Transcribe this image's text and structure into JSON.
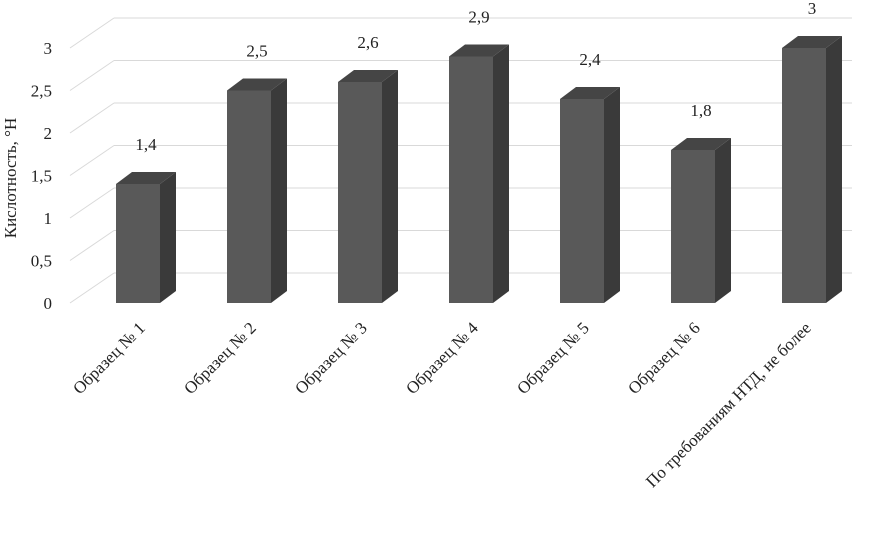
{
  "chart_data": {
    "type": "bar",
    "title": "",
    "xlabel": "",
    "ylabel": "Кислотность, °Н",
    "categories": [
      "Образец № 1",
      "Образец № 2",
      "Образец № 3",
      "Образец № 4",
      "Образец № 5",
      "Образец № 6",
      "По требованиям НТД, не более"
    ],
    "values": [
      1.4,
      2.5,
      2.6,
      2.9,
      2.4,
      1.8,
      3
    ],
    "value_labels": [
      "1,4",
      "2,5",
      "2,6",
      "2,9",
      "2,4",
      "1,8",
      "3"
    ],
    "ylim": [
      0,
      3
    ],
    "yticks": [
      0,
      0.5,
      1,
      1.5,
      2,
      2.5,
      3
    ],
    "ytick_labels": [
      "0",
      "0,5",
      "1",
      "1,5",
      "2",
      "2,5",
      "3"
    ],
    "grid": true,
    "legend": "none",
    "style": "3d-column",
    "colors": {
      "bar_front": "#595959",
      "bar_side": "#3a3a3a",
      "bar_top": "#454545",
      "grid": "#d9d9d9",
      "text": "#222222"
    }
  }
}
